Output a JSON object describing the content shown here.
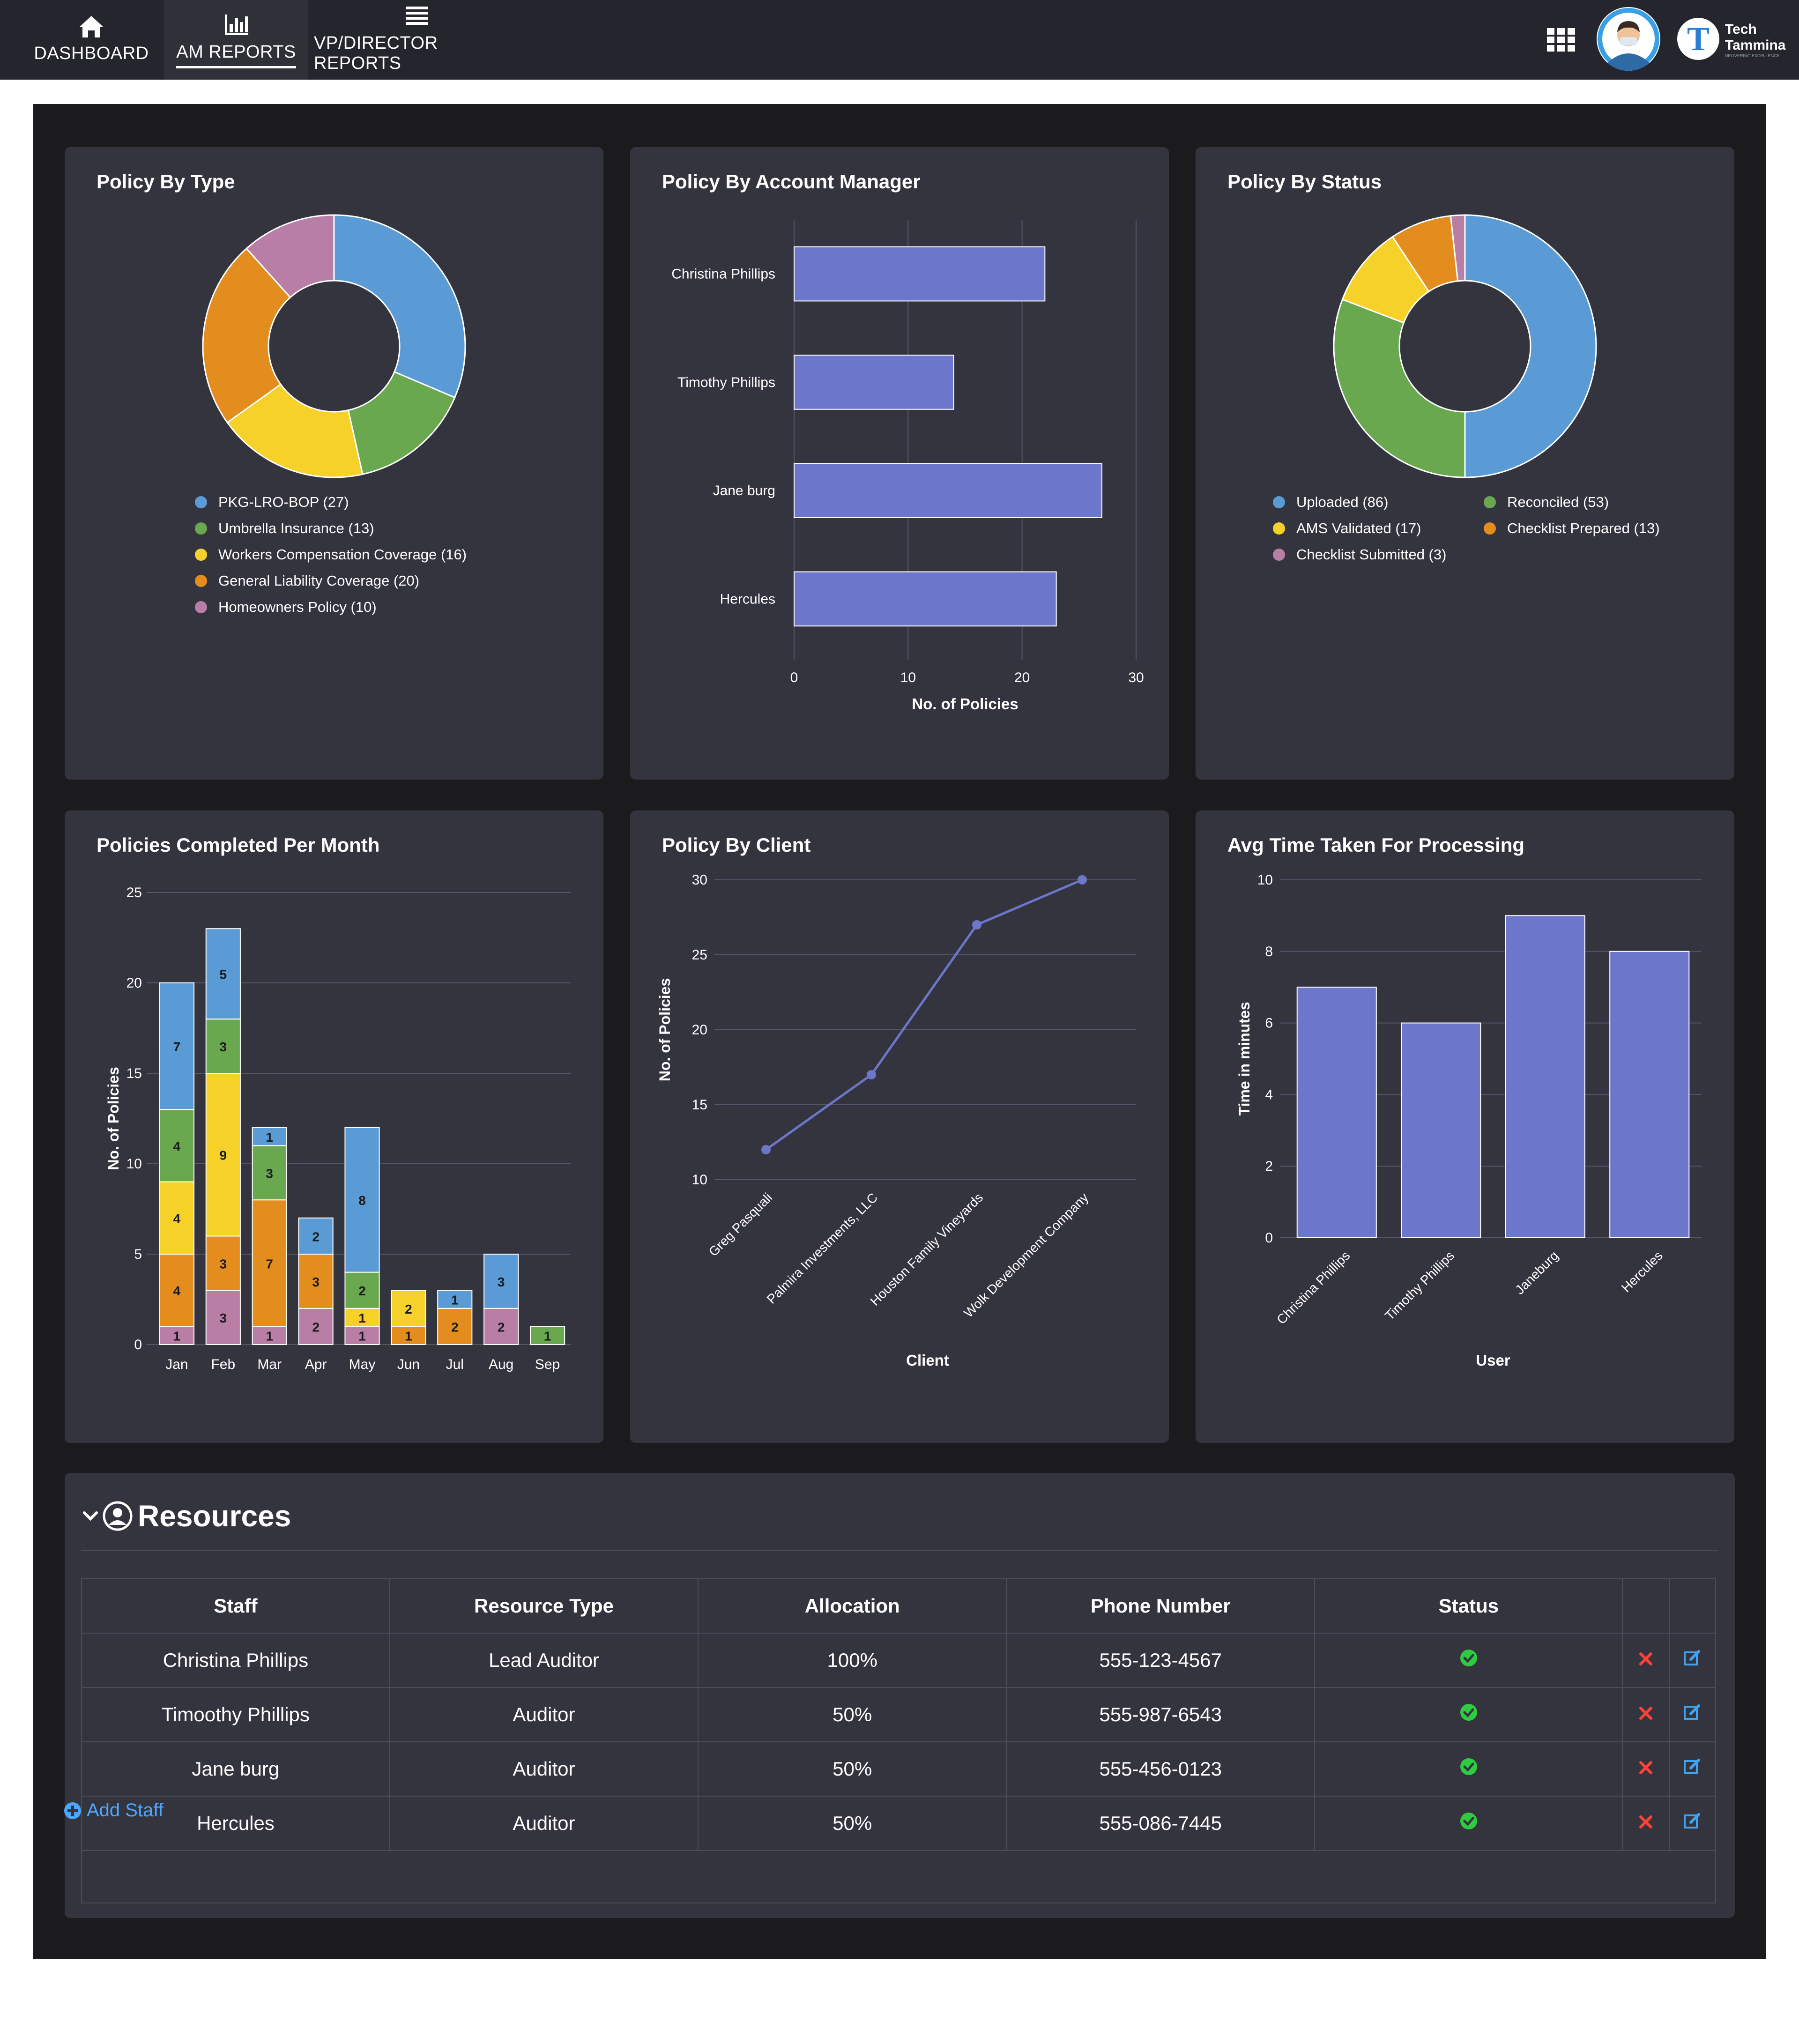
{
  "nav": {
    "items": [
      {
        "label": "DASHBOARD",
        "icon": "home-icon"
      },
      {
        "label": "AM REPORTS",
        "icon": "bar-chart-icon",
        "active": true
      },
      {
        "label": "VP/DIRECTOR REPORTS",
        "icon": "list-icon"
      }
    ],
    "brand": {
      "name_line1": "Tech",
      "name_line2": "Tammina",
      "tagline": "DELIVERING EXCELLENCE"
    }
  },
  "cards": {
    "policy_by_type": "Policy By Type",
    "policy_by_am": "Policy By Account Manager",
    "policy_by_status": "Policy By Status",
    "completed_per_month": "Policies Completed Per Month",
    "policy_by_client": "Policy By Client",
    "avg_time": "Avg Time Taken For Processing"
  },
  "colors": {
    "blue": "#5b9bd5",
    "green": "#6aa84f",
    "yellow": "#f6d129",
    "orange": "#e38d1f",
    "pink": "#b87ea6",
    "bar": "#6c77cc",
    "card": "#34343f",
    "panel": "#1b1b1e",
    "nav": "#25262d"
  },
  "chart_data": [
    {
      "type": "pie",
      "title": "Policy By Type",
      "donut": true,
      "series": [
        {
          "name": "PKG-LRO-BOP",
          "value": 27,
          "legend": "PKG-LRO-BOP (27)",
          "color": "#5b9bd5"
        },
        {
          "name": "Umbrella Insurance",
          "value": 13,
          "legend": "Umbrella Insurance (13)",
          "color": "#6aa84f"
        },
        {
          "name": "Workers Compensation Coverage",
          "value": 16,
          "legend": "Workers Compensation Coverage (16)",
          "color": "#f6d129"
        },
        {
          "name": "General Liability Coverage",
          "value": 20,
          "legend": "General Liability Coverage (20)",
          "color": "#e38d1f"
        },
        {
          "name": "Homeowners Policy",
          "value": 10,
          "legend": "Homeowners Policy (10)",
          "color": "#b87ea6"
        }
      ]
    },
    {
      "type": "bar",
      "orientation": "horizontal",
      "title": "Policy By Account Manager",
      "categories": [
        "Christina Phillips",
        "Timothy Phillips",
        "Jane burg",
        "Hercules"
      ],
      "values": [
        22,
        14,
        27,
        23
      ],
      "xlabel": "No. of Policies",
      "xlim": [
        0,
        30
      ],
      "xticks": [
        "0",
        "10",
        "20",
        "30"
      ],
      "color": "#6c77cc"
    },
    {
      "type": "pie",
      "title": "Policy By Status",
      "donut": true,
      "series": [
        {
          "name": "Uploaded",
          "value": 86,
          "legend": "Uploaded (86)",
          "color": "#5b9bd5"
        },
        {
          "name": "Reconciled",
          "value": 53,
          "legend": "Reconciled (53)",
          "color": "#6aa84f"
        },
        {
          "name": "AMS Validated",
          "value": 17,
          "legend": "AMS Validated (17)",
          "color": "#f6d129"
        },
        {
          "name": "Checklist Prepared",
          "value": 13,
          "legend": "Checklist Prepared (13)",
          "color": "#e38d1f"
        },
        {
          "name": "Checklist Submitted",
          "value": 3,
          "legend": "Checklist Submitted (3)",
          "color": "#b87ea6"
        }
      ]
    },
    {
      "type": "bar",
      "stacked": true,
      "title": "Policies Completed Per Month",
      "categories": [
        "Jan",
        "Feb",
        "Mar",
        "Apr",
        "May",
        "Jun",
        "Jul",
        "Aug",
        "Sep"
      ],
      "ylabel": "No. of Policies",
      "ylim": [
        0,
        25
      ],
      "yticks": [
        "0",
        "5",
        "10",
        "15",
        "20",
        "25"
      ],
      "series": [
        {
          "color": "#b87ea6",
          "values": [
            1,
            3,
            1,
            2,
            1,
            0,
            0,
            2,
            0
          ]
        },
        {
          "color": "#e38d1f",
          "values": [
            4,
            3,
            7,
            3,
            0,
            1,
            2,
            0,
            0
          ]
        },
        {
          "color": "#f6d129",
          "values": [
            4,
            9,
            0,
            0,
            1,
            2,
            0,
            0,
            0
          ]
        },
        {
          "color": "#6aa84f",
          "values": [
            4,
            3,
            3,
            0,
            2,
            0,
            0,
            0,
            1
          ]
        },
        {
          "color": "#5b9bd5",
          "values": [
            7,
            5,
            1,
            2,
            8,
            0,
            1,
            3,
            0
          ]
        }
      ]
    },
    {
      "type": "line",
      "title": "Policy By Client",
      "categories": [
        "Greg Pasquali",
        "Palmira Investments, LLC",
        "Houston Family Vineyards",
        "Wolk Development Company"
      ],
      "values": [
        12,
        17,
        27,
        30
      ],
      "xlabel": "Client",
      "ylabel": "No. of Policies",
      "ylim": [
        10,
        30
      ],
      "yticks": [
        "10",
        "15",
        "20",
        "25",
        "30"
      ],
      "color": "#6c77cc"
    },
    {
      "type": "bar",
      "title": "Avg Time Taken For Processing",
      "categories": [
        "Christina Phillips",
        "Timothy Phillips",
        "Janeburg",
        "Hercules"
      ],
      "values": [
        7,
        6,
        9,
        8
      ],
      "xlabel": "User",
      "ylabel": "Time in minutes",
      "ylim": [
        0,
        10
      ],
      "yticks": [
        "0",
        "2",
        "4",
        "6",
        "8",
        "10"
      ],
      "color": "#6c77cc"
    }
  ],
  "resources": {
    "title": "Resources",
    "columns": [
      "Staff",
      "Resource Type",
      "Allocation",
      "Phone Number",
      "Status"
    ],
    "rows": [
      {
        "staff": "Christina Phillips",
        "type": "Lead Auditor",
        "allocation": "100%",
        "phone": "555-123-4567",
        "status": "active"
      },
      {
        "staff": "Timoothy Phillips",
        "type": "Auditor",
        "allocation": "50%",
        "phone": "555-987-6543",
        "status": "active"
      },
      {
        "staff": "Jane burg",
        "type": "Auditor",
        "allocation": "50%",
        "phone": "555-456-0123",
        "status": "active"
      },
      {
        "staff": "Hercules",
        "type": "Auditor",
        "allocation": "50%",
        "phone": "555-086-7445",
        "status": "active"
      }
    ],
    "add_label": "Add Staff"
  }
}
